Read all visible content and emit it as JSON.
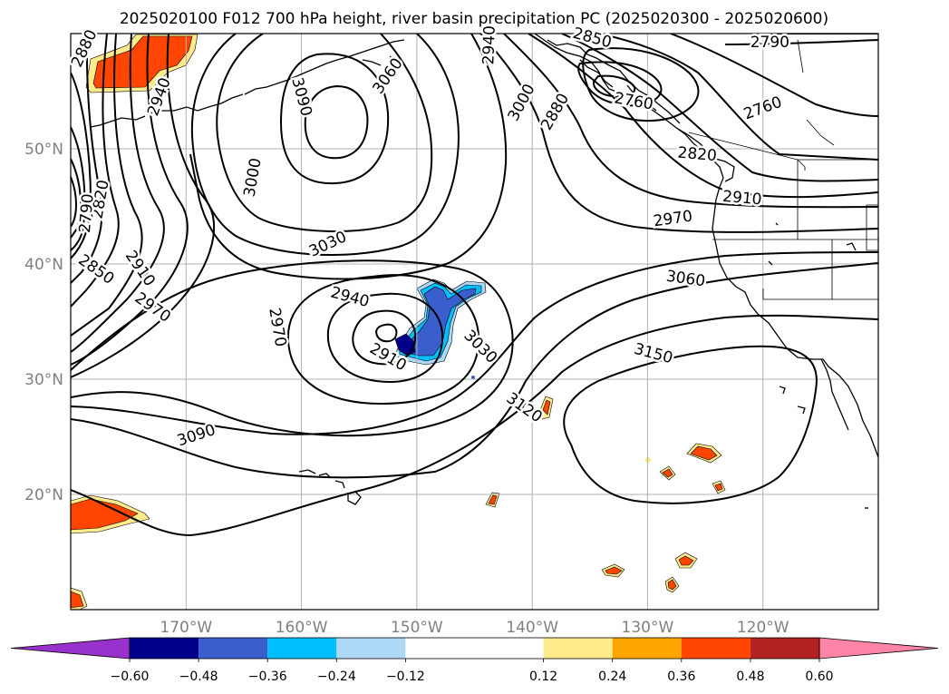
{
  "title": "2025020100 F012 700 hPa height, river basin precipitation PC (2025020300 - 2025020600)",
  "map": {
    "lon_range": [
      -180,
      -110
    ],
    "lat_range": [
      10,
      60
    ],
    "lon_ticks": [
      {
        "lon": -170,
        "label": "170°W"
      },
      {
        "lon": -160,
        "label": "160°W"
      },
      {
        "lon": -150,
        "label": "150°W"
      },
      {
        "lon": -140,
        "label": "140°W"
      },
      {
        "lon": -130,
        "label": "130°W"
      },
      {
        "lon": -120,
        "label": "120°W"
      }
    ],
    "lat_ticks": [
      {
        "lat": 50,
        "label": "50°N"
      },
      {
        "lat": 40,
        "label": "40°N"
      },
      {
        "lat": 30,
        "label": "30°N"
      },
      {
        "lat": 20,
        "label": "20°N"
      }
    ],
    "gridlines": true
  },
  "contour_labels": [
    {
      "text": "2880",
      "lon": -178.8,
      "lat": 58.7,
      "rot": 65
    },
    {
      "text": "2940",
      "lon": -172.3,
      "lat": 54.5,
      "rot": 70
    },
    {
      "text": "3090",
      "lon": -160.0,
      "lat": 54.5,
      "rot": -75
    },
    {
      "text": "3060",
      "lon": -152.5,
      "lat": 56.3,
      "rot": 55
    },
    {
      "text": "2940",
      "lon": -143.7,
      "lat": 59.0,
      "rot": 88
    },
    {
      "text": "3000",
      "lon": -140.9,
      "lat": 54.0,
      "rot": 62
    },
    {
      "text": "2880",
      "lon": -138.0,
      "lat": 53.2,
      "rot": 60
    },
    {
      "text": "2850",
      "lon": -134.8,
      "lat": 59.6,
      "rot": -15
    },
    {
      "text": "2760",
      "lon": -131.2,
      "lat": 54.1,
      "rot": -10
    },
    {
      "text": "2820",
      "lon": -125.7,
      "lat": 49.5,
      "rot": -5
    },
    {
      "text": "2760",
      "lon": -120.0,
      "lat": 53.5,
      "rot": 20
    },
    {
      "text": "2790",
      "lon": -119.4,
      "lat": 59.2,
      "rot": 0
    },
    {
      "text": "2910",
      "lon": -121.8,
      "lat": 45.7,
      "rot": -5
    },
    {
      "text": "2970",
      "lon": -127.8,
      "lat": 43.9,
      "rot": 8
    },
    {
      "text": "3060",
      "lon": -126.7,
      "lat": 38.7,
      "rot": -8
    },
    {
      "text": "3150",
      "lon": -129.5,
      "lat": 32.2,
      "rot": -15
    },
    {
      "text": "3120",
      "lon": -140.7,
      "lat": 27.5,
      "rot": -35
    },
    {
      "text": "3030",
      "lon": -144.5,
      "lat": 32.8,
      "rot": -45
    },
    {
      "text": "2940",
      "lon": -155.8,
      "lat": 37.1,
      "rot": -15
    },
    {
      "text": "2910",
      "lon": -152.5,
      "lat": 31.9,
      "rot": -30
    },
    {
      "text": "2970",
      "lon": -162.1,
      "lat": 34.5,
      "rot": -80
    },
    {
      "text": "3030",
      "lon": -157.7,
      "lat": 41.7,
      "rot": 25
    },
    {
      "text": "3000",
      "lon": -164.2,
      "lat": 47.5,
      "rot": 80
    },
    {
      "text": "2820",
      "lon": -177.4,
      "lat": 45.6,
      "rot": 80
    },
    {
      "text": "2790",
      "lon": -178.6,
      "lat": 44.4,
      "rot": 85
    },
    {
      "text": "2850",
      "lon": -177.8,
      "lat": 39.5,
      "rot": -35
    },
    {
      "text": "2910",
      "lon": -174.0,
      "lat": 39.6,
      "rot": -55
    },
    {
      "text": "2970",
      "lon": -172.9,
      "lat": 36.2,
      "rot": -35
    },
    {
      "text": "3090",
      "lon": -169.1,
      "lat": 25.1,
      "rot": 18
    }
  ],
  "colorbar": {
    "boundaries": [
      -0.6,
      -0.48,
      -0.36,
      -0.24,
      -0.12,
      0.12,
      0.24,
      0.36,
      0.48,
      0.6
    ],
    "tick_labels": [
      "−0.60",
      "−0.48",
      "−0.36",
      "−0.24",
      "−0.12",
      "0.12",
      "0.24",
      "0.36",
      "0.48",
      "0.60"
    ],
    "colors": [
      "#9932cc",
      "#00008b",
      "#3a5fcd",
      "#00bfff",
      "#add8f5",
      "#ffffff",
      "#ffea8c",
      "#ffa500",
      "#ff4500",
      "#b22222",
      "#ff85a8"
    ],
    "extend": "both"
  }
}
